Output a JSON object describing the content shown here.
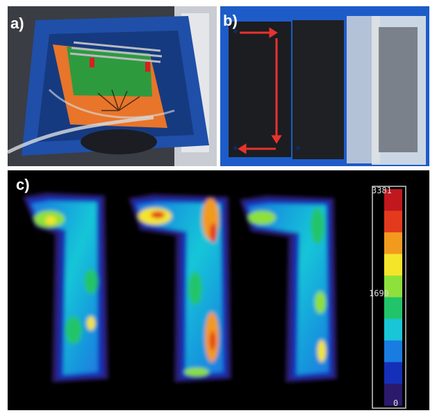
{
  "figure": {
    "panels": [
      {
        "id": "a",
        "label": "a)",
        "content": "photo"
      },
      {
        "id": "b",
        "label": "b)",
        "content": "photo"
      },
      {
        "id": "c",
        "label": "c)",
        "content": "intensity-map"
      }
    ],
    "panel_b_arrows": {
      "color": "#e8322e"
    },
    "panel_c": {
      "colorbar": {
        "max_label": "3381",
        "mid_label": "1690",
        "min_label": "0",
        "colors": [
          "#2b1a6b",
          "#1530b8",
          "#1a7be0",
          "#18c6d8",
          "#22c46a",
          "#8ee03a",
          "#f5e52a",
          "#f29a1e",
          "#e33a1e",
          "#c0181e"
        ]
      },
      "shape_count": 3
    }
  }
}
